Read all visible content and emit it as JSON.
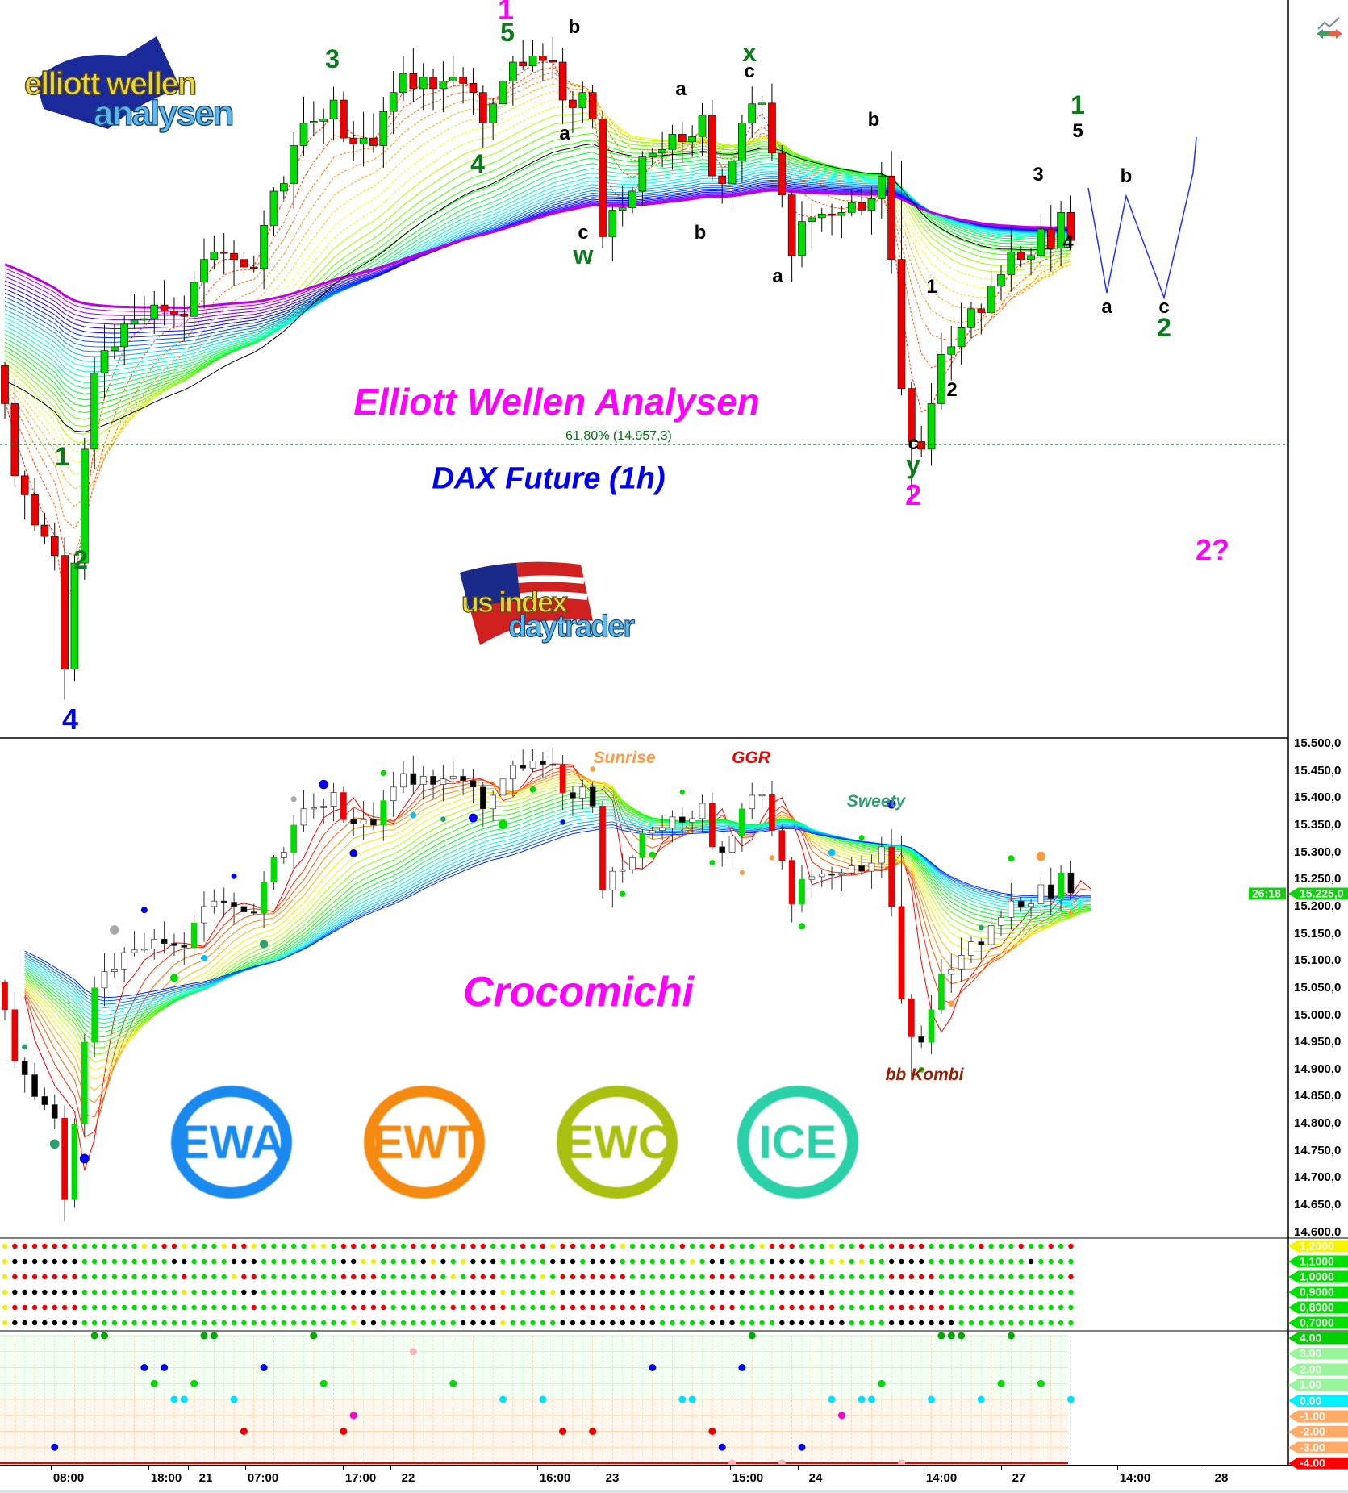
{
  "chart_data": {
    "type": "candlestick",
    "title": "Elliott Wellen Analysen",
    "subtitle": "DAX Future (1h)",
    "instrument": "DAX Future",
    "timeframe": "1h",
    "closes": [
      15010,
      14915,
      14890,
      14850,
      14835,
      14810,
      14660,
      14800,
      14950,
      15050,
      15080,
      15085,
      15115,
      15120,
      15122,
      15140,
      15132,
      15128,
      15125,
      15170,
      15200,
      15210,
      15208,
      15200,
      15190,
      15188,
      15245,
      15290,
      15300,
      15350,
      15380,
      15382,
      15385,
      15410,
      15360,
      15352,
      15360,
      15350,
      15395,
      15420,
      15445,
      15425,
      15440,
      15425,
      15435,
      15440,
      15432,
      15420,
      15380,
      15405,
      15435,
      15460,
      15455,
      15468,
      15462,
      15460,
      15410,
      15400,
      15420,
      15385,
      15230,
      15265,
      15268,
      15290,
      15335,
      15340,
      15345,
      15365,
      15355,
      15362,
      15390,
      15310,
      15300,
      15330,
      15380,
      15405,
      15406,
      15340,
      15285,
      15205,
      15250,
      15255,
      15260,
      15258,
      15262,
      15275,
      15265,
      15280,
      15310,
      15200,
      15030,
      14960,
      14950,
      15010,
      15075,
      15085,
      15110,
      15135,
      15130,
      15165,
      15180,
      15210,
      15200,
      15205,
      15240,
      15215,
      15262,
      15225
    ],
    "fib_level": {
      "label": "61,80% (14.957,3)",
      "value": 14957.3
    },
    "price_axis": {
      "min": 14600,
      "max": 15500,
      "step": 50,
      "labels": [
        "15.500,0",
        "15.450,0",
        "15.400,0",
        "15.350,0",
        "15.300,0",
        "15.250,0",
        "15.200,0",
        "15.150,0",
        "15.100,0",
        "15.050,0",
        "15.000,0",
        "14.950,0",
        "14.900,0",
        "14.850,0",
        "14.800,0",
        "14.750,0",
        "14.700,0",
        "14.650,0",
        "14.600,0"
      ]
    },
    "last_price_tag": "15.225,0",
    "countdown_tag": "26:18",
    "time_axis": [
      "08:00",
      "18:00",
      "21",
      "07:00",
      "17:00",
      "22",
      "16:00",
      "23",
      "15:00",
      "24",
      "14:00",
      "27",
      "14:00",
      "28"
    ]
  },
  "wave_labels": {
    "top": [
      "1",
      "5",
      "3",
      "b",
      "a",
      "4",
      "c",
      "w",
      "a",
      "x",
      "c",
      "b",
      "b",
      "a",
      "1",
      "5",
      "3",
      "b",
      "4",
      "a",
      "c",
      "2",
      "1",
      "2",
      "c",
      "y",
      "2",
      "2?",
      "1",
      "2",
      "4"
    ]
  },
  "texts": {
    "main_title": "Elliott Wellen Analysen",
    "instrument_title": "DAX Future (1h)",
    "fib": "61,80% (14.957,3)",
    "sunrise": "Sunrise",
    "ggr": "GGR",
    "sweety": "Sweety",
    "crocomichi": "Crocomichi",
    "bb_kombi": "bb Kombi",
    "logo_top_1": "elliott wellen",
    "logo_top_2": "analysen",
    "logo_us_1": "us index",
    "logo_us_2": "daytrader"
  },
  "badges": [
    "EWA",
    "EWT",
    "EWC",
    "ICE"
  ],
  "dot_matrix_axis": [
    {
      "label": "1,2000",
      "color": "#f5f500"
    },
    {
      "label": "1,1000",
      "color": "#00e000"
    },
    {
      "label": "1,0000",
      "color": "#00e000"
    },
    {
      "label": "0,9000",
      "color": "#00e000"
    },
    {
      "label": "0,8000",
      "color": "#00e000"
    },
    {
      "label": "0,7000",
      "color": "#00e000"
    }
  ],
  "indicator_axis": [
    {
      "label": "4.00",
      "color": "#00d000"
    },
    {
      "label": "3.00",
      "color": "#99f599"
    },
    {
      "label": "2.00",
      "color": "#99f599"
    },
    {
      "label": "1.00",
      "color": "#99f599"
    },
    {
      "label": "0.00",
      "color": "#00f0ff"
    },
    {
      "label": "-1.00",
      "color": "#ffaa66"
    },
    {
      "label": "-2.00",
      "color": "#ffaa66"
    },
    {
      "label": "-3.00",
      "color": "#ffaa66"
    },
    {
      "label": "-4.00",
      "color": "#ff0000"
    }
  ],
  "colors": {
    "up": "#00dd00",
    "down": "#ee0000",
    "wave_green": "#0a7a1a",
    "magenta": "#ff00ff",
    "blue": "#0000ee",
    "axis": "#000000"
  }
}
